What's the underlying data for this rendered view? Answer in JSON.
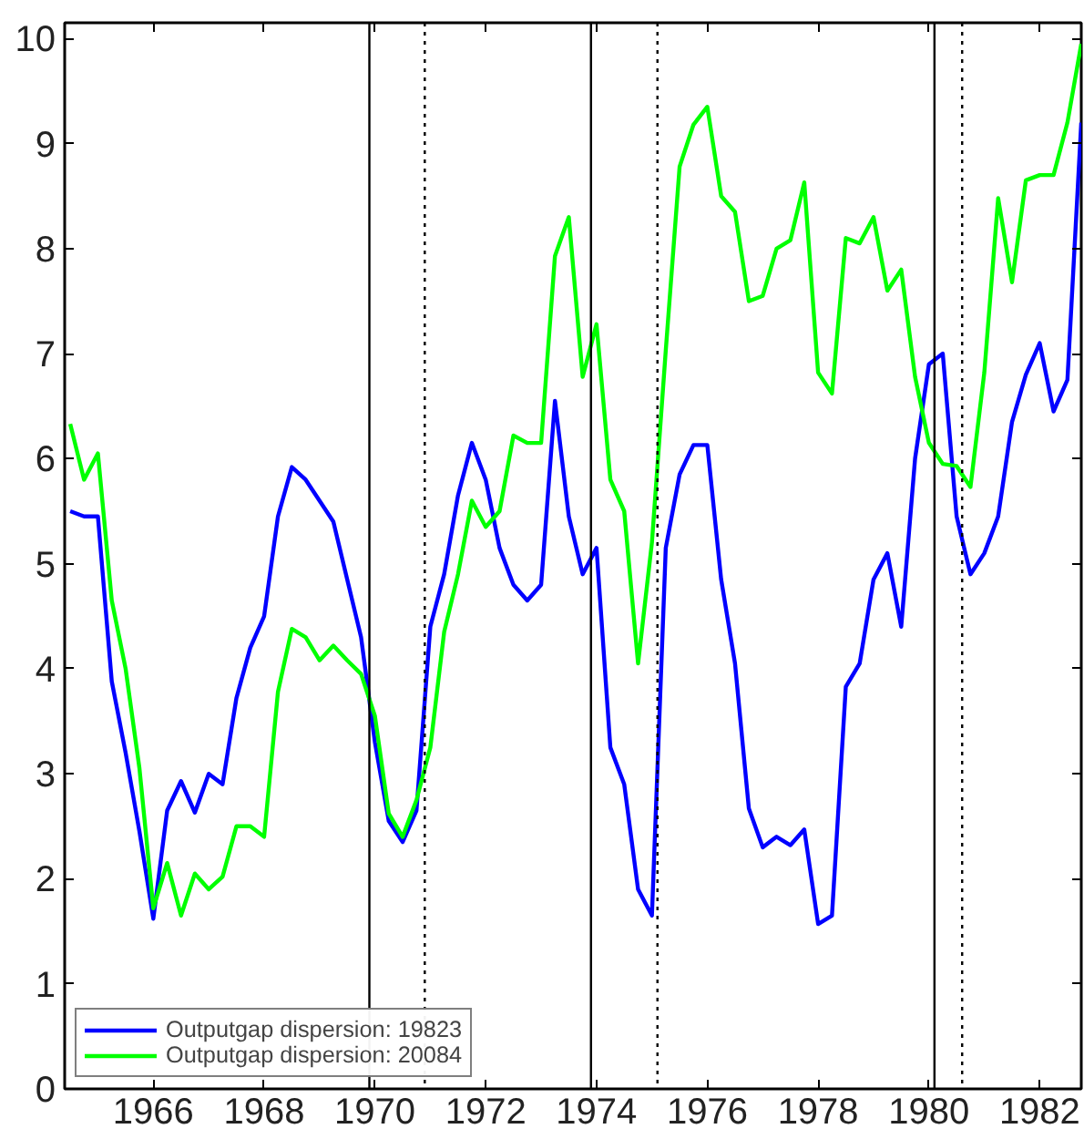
{
  "chart_data": {
    "type": "line",
    "x": [
      1964.5,
      1964.75,
      1965.0,
      1965.25,
      1965.5,
      1965.75,
      1966.0,
      1966.25,
      1966.5,
      1966.75,
      1967.0,
      1967.25,
      1967.5,
      1967.75,
      1968.0,
      1968.25,
      1968.5,
      1968.75,
      1969.0,
      1969.25,
      1969.5,
      1969.75,
      1970.0,
      1970.25,
      1970.5,
      1970.75,
      1971.0,
      1971.25,
      1971.5,
      1971.75,
      1972.0,
      1972.25,
      1972.5,
      1972.75,
      1973.0,
      1973.25,
      1973.5,
      1973.75,
      1974.0,
      1974.25,
      1974.5,
      1974.75,
      1975.0,
      1975.25,
      1975.5,
      1975.75,
      1976.0,
      1976.25,
      1976.5,
      1976.75,
      1977.0,
      1977.25,
      1977.5,
      1977.75,
      1978.0,
      1978.25,
      1978.5,
      1978.75,
      1979.0,
      1979.25,
      1979.5,
      1979.75,
      1980.0,
      1980.25,
      1980.5,
      1980.75,
      1981.0,
      1981.25,
      1981.5,
      1981.75,
      1982.0,
      1982.25,
      1982.5,
      1982.75
    ],
    "series": [
      {
        "name": "Outputgap dispersion: 19823",
        "color": "#0000ff",
        "values": [
          5.5,
          5.45,
          5.45,
          3.88,
          3.2,
          2.45,
          1.62,
          2.65,
          2.93,
          2.63,
          3.0,
          2.9,
          3.72,
          4.2,
          4.5,
          5.45,
          5.92,
          5.8,
          5.6,
          5.4,
          4.85,
          4.3,
          3.3,
          2.55,
          2.35,
          2.65,
          4.4,
          4.9,
          5.65,
          6.15,
          5.8,
          5.15,
          4.8,
          4.65,
          4.8,
          6.55,
          5.45,
          4.9,
          5.15,
          3.25,
          2.9,
          1.9,
          1.65,
          5.15,
          5.85,
          6.13,
          6.13,
          4.85,
          4.05,
          2.67,
          2.3,
          2.4,
          2.32,
          2.47,
          1.57,
          1.65,
          3.83,
          4.05,
          4.85,
          5.1,
          4.4,
          6.0,
          6.9,
          7.0,
          5.45,
          4.9,
          5.1,
          5.45,
          6.35,
          6.8,
          7.1,
          6.45,
          6.75,
          9.2
        ]
      },
      {
        "name": "Outputgap dispersion: 20084",
        "color": "#00ff00",
        "values": [
          6.33,
          5.8,
          6.05,
          4.65,
          4.0,
          3.05,
          1.72,
          2.15,
          1.65,
          2.05,
          1.9,
          2.02,
          2.5,
          2.5,
          2.4,
          3.78,
          4.38,
          4.3,
          4.08,
          4.22,
          4.08,
          3.95,
          3.55,
          2.62,
          2.4,
          2.75,
          3.25,
          4.35,
          4.9,
          5.6,
          5.35,
          5.5,
          6.22,
          6.15,
          6.15,
          7.93,
          8.3,
          6.78,
          7.28,
          5.8,
          5.5,
          4.05,
          5.2,
          7.03,
          8.78,
          9.18,
          9.35,
          8.5,
          8.35,
          7.5,
          7.55,
          8.0,
          8.08,
          8.63,
          6.82,
          6.62,
          8.1,
          8.05,
          8.3,
          7.6,
          7.8,
          6.78,
          6.15,
          5.95,
          5.93,
          5.73,
          6.82,
          8.48,
          7.68,
          8.65,
          8.7,
          8.7,
          9.2,
          9.95
        ]
      }
    ],
    "xlim": [
      1964.4,
      1982.75
    ],
    "xticks": [
      1966,
      1968,
      1970,
      1972,
      1974,
      1976,
      1978,
      1980,
      1982
    ],
    "ylim": [
      0,
      10.15
    ],
    "yticks": [
      0,
      1,
      2,
      3,
      4,
      5,
      6,
      7,
      8,
      9,
      10
    ],
    "ref_lines": [
      {
        "axis": "x",
        "value": 1969.9,
        "color": "#000000",
        "line_style": "solid"
      },
      {
        "axis": "x",
        "value": 1970.9,
        "color": "#000000",
        "line_style": "dotted"
      },
      {
        "axis": "x",
        "value": 1973.9,
        "color": "#000000",
        "line_style": "solid"
      },
      {
        "axis": "x",
        "value": 1975.1,
        "color": "#000000",
        "line_style": "dotted"
      },
      {
        "axis": "x",
        "value": 1980.1,
        "color": "#000000",
        "line_style": "solid"
      },
      {
        "axis": "x",
        "value": 1980.6,
        "color": "#000000",
        "line_style": "dotted"
      }
    ],
    "legend": "bottom left",
    "grid": false,
    "line_style": "solid"
  }
}
